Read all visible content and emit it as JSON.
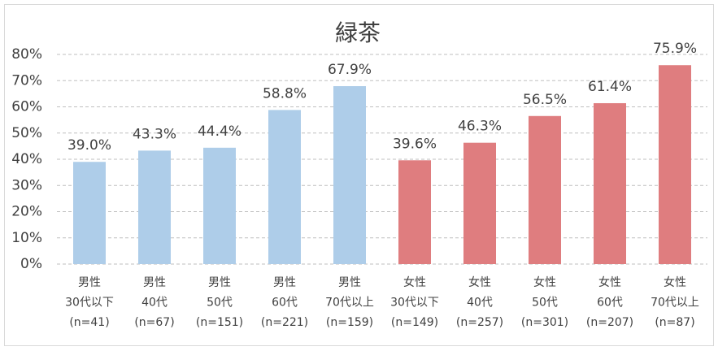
{
  "chart_data": {
    "type": "bar",
    "title": "緑茶",
    "categories": [
      [
        "男性",
        "30代以下",
        "(n=41)"
      ],
      [
        "男性",
        "40代",
        "(n=67)"
      ],
      [
        "男性",
        "50代",
        "(n=151)"
      ],
      [
        "男性",
        "60代",
        "(n=221)"
      ],
      [
        "男性",
        "70代以上",
        "(n=159)"
      ],
      [
        "女性",
        "30代以下",
        "(n=149)"
      ],
      [
        "女性",
        "40代",
        "(n=257)"
      ],
      [
        "女性",
        "50代",
        "(n=301)"
      ],
      [
        "女性",
        "60代",
        "(n=207)"
      ],
      [
        "女性",
        "70代以上",
        "(n=87)"
      ]
    ],
    "values": [
      39.0,
      43.3,
      44.4,
      58.8,
      67.9,
      39.6,
      46.3,
      56.5,
      61.4,
      75.9
    ],
    "value_labels": [
      "39.0%",
      "43.3%",
      "44.4%",
      "58.8%",
      "67.9%",
      "39.6%",
      "46.3%",
      "56.5%",
      "61.4%",
      "75.9%"
    ],
    "colors": [
      "#aecde9",
      "#aecde9",
      "#aecde9",
      "#aecde9",
      "#aecde9",
      "#df7d7f",
      "#df7d7f",
      "#df7d7f",
      "#df7d7f",
      "#df7d7f"
    ],
    "ylim": [
      0,
      80
    ],
    "yticks": [
      {
        "value": 0,
        "label": "0%"
      },
      {
        "value": 10,
        "label": "10%"
      },
      {
        "value": 20,
        "label": "20%"
      },
      {
        "value": 30,
        "label": "30%"
      },
      {
        "value": 40,
        "label": "40%"
      },
      {
        "value": 50,
        "label": "50%"
      },
      {
        "value": 60,
        "label": "60%"
      },
      {
        "value": 70,
        "label": "70%"
      },
      {
        "value": 80,
        "label": "80%"
      }
    ],
    "grid": true
  }
}
